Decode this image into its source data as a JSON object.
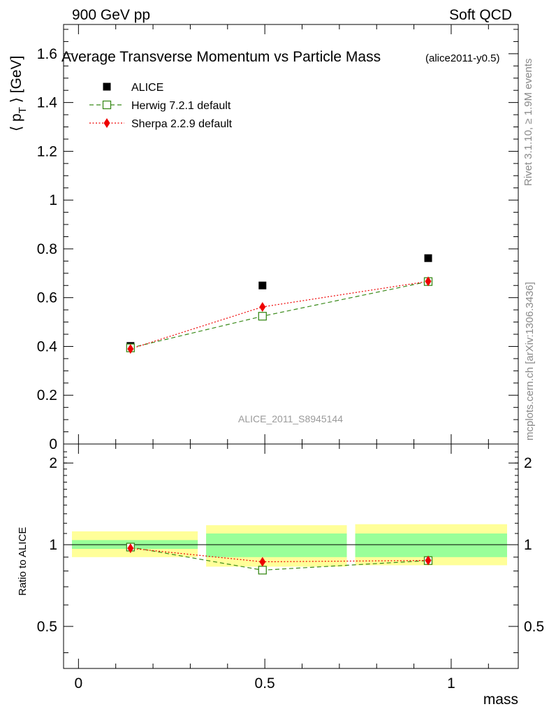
{
  "header": {
    "left": "900 GeV pp",
    "right": "Soft QCD"
  },
  "side_labels": {
    "rivet": "Rivet 3.1.10, ≥ 1.9M events",
    "mcplots": "mcplots.cern.ch [arXiv:1306.3436]"
  },
  "chart_data": {
    "type": "scatter",
    "title": "Average Transverse Momentum vs Particle Mass",
    "title_tag": "(alice2011-y0.5)",
    "watermark": "ALICE_2011_S8945144",
    "xlabel": "mass",
    "ylabel_main": "⟨ p",
    "ylabel_sub": "T",
    "ylabel_tail": " ⟩ [GeV]",
    "ylabel_ratio": "Ratio to ALICE",
    "xlim": [
      -0.04,
      1.18
    ],
    "ylim_main": [
      0,
      1.72
    ],
    "ylim_ratio": [
      0.35,
      2.35
    ],
    "ratio_log_scale": true,
    "x_ticks": [
      0,
      0.5,
      1
    ],
    "x_tick_labels": [
      "0",
      "0.5",
      "1"
    ],
    "y_ticks_main": [
      0,
      0.2,
      0.4,
      0.6,
      0.8,
      1,
      1.2,
      1.4,
      1.6
    ],
    "y_tick_labels_main": [
      "0",
      "0.2",
      "0.4",
      "0.6",
      "0.8",
      "1",
      "1.2",
      "1.4",
      "1.6"
    ],
    "y_ticks_ratio": [
      0.5,
      1,
      2
    ],
    "y_tick_labels_ratio": [
      "0.5",
      "1",
      "2"
    ],
    "legend_position": "top-left",
    "x": [
      0.1396,
      0.4937,
      0.9383
    ],
    "series": [
      {
        "name": "ALICE",
        "marker": "filled-square",
        "color": "#000000",
        "line": "none",
        "values": [
          0.402,
          0.65,
          0.762
        ],
        "ratio": [
          1.0,
          1.0,
          1.0
        ]
      },
      {
        "name": "Herwig 7.2.1 default",
        "marker": "open-square",
        "color": "#3a8a1a",
        "line": "dashed",
        "values": [
          0.394,
          0.524,
          0.666
        ],
        "ratio": [
          0.98,
          0.806,
          0.874
        ]
      },
      {
        "name": "Sherpa 2.2.9 default",
        "marker": "diamond",
        "color": "#ee0000",
        "line": "dotted",
        "values": [
          0.39,
          0.562,
          0.667
        ],
        "ratio": [
          0.97,
          0.865,
          0.875
        ]
      }
    ],
    "uncertainty_bands": [
      {
        "x_range": [
          -0.04,
          0.32
        ],
        "inner": [
          0.965,
          1.04
        ],
        "outer": [
          0.9,
          1.12
        ]
      },
      {
        "x_range": [
          0.32,
          0.72
        ],
        "inner": [
          0.9,
          1.1
        ],
        "outer": [
          0.83,
          1.18
        ]
      },
      {
        "x_range": [
          0.72,
          1.15
        ],
        "inner": [
          0.9,
          1.1
        ],
        "outer": [
          0.84,
          1.19
        ]
      }
    ],
    "band_colors": {
      "inner": "#99ff99",
      "outer": "#ffff99"
    }
  }
}
